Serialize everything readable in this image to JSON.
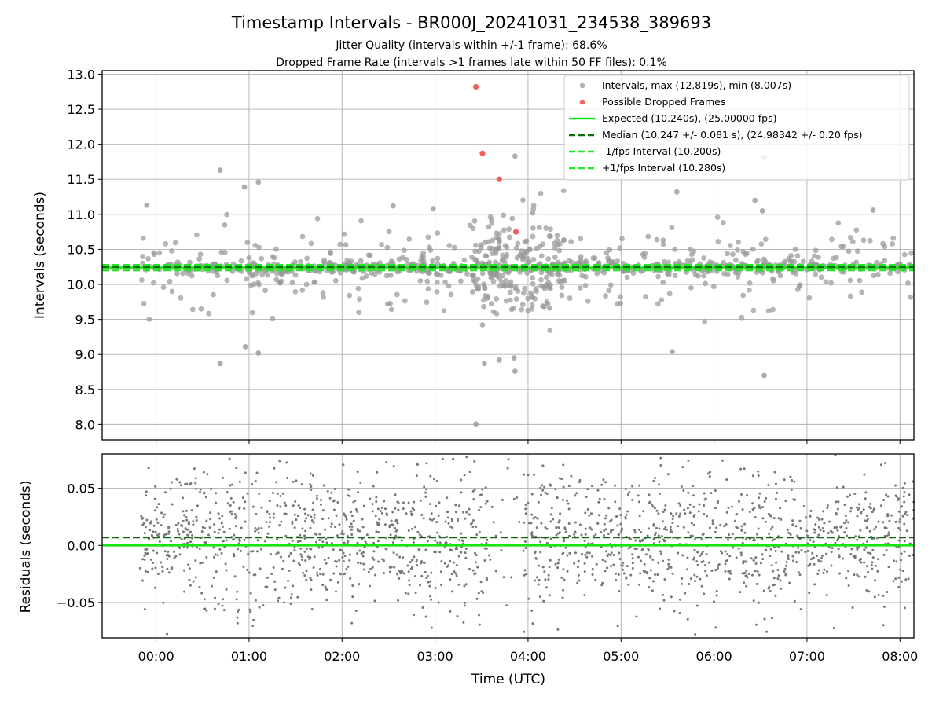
{
  "chart_data": {
    "type": "scatter",
    "title": "Timestamp Intervals - BR000J_20241031_234538_389693",
    "subtitle_lines": [
      "Jitter Quality (intervals within +/-1 frame): 68.6%",
      "Dropped Frame Rate (intervals >1 frames late within 50 FF files): 0.1%"
    ],
    "xlabel": "Time (UTC)",
    "x_ticks": [
      "00:00",
      "01:00",
      "02:00",
      "03:00",
      "04:00",
      "05:00",
      "06:00",
      "07:00",
      "08:00"
    ],
    "x_range_hours": [
      -0.58,
      8.15
    ],
    "grid": true,
    "legend_position": "upper right",
    "colors": {
      "intervals": "#999999",
      "dropped": "#ef4a4a",
      "expected": "#14e614",
      "median": "#0b6e0b",
      "fps_bounds": "#24e624",
      "residuals": "#777777"
    },
    "top_panel": {
      "ylabel": "Intervals (seconds)",
      "ylim": [
        7.78,
        13.05
      ],
      "y_ticks": [
        "8.0",
        "8.5",
        "9.0",
        "9.5",
        "10.0",
        "10.5",
        "11.0",
        "11.5",
        "12.0",
        "12.5",
        "13.0"
      ],
      "lines": {
        "expected": 10.24,
        "median": 10.247,
        "lower": 10.2,
        "upper": 10.28
      },
      "legend": [
        "Intervals, max (12.819s), min (8.007s)",
        "Possible Dropped Frames",
        "Expected (10.240s), (25.00000 fps)",
        "Median (10.247 +/- 0.081 s), (24.98342 +/- 0.20 fps)",
        "-1/fps Interval (10.200s)",
        "+1/fps Interval (10.280s)"
      ],
      "dropped_frames": [
        {
          "x": 3.44,
          "y": 12.82
        },
        {
          "x": 3.51,
          "y": 11.87
        },
        {
          "x": 3.69,
          "y": 11.5
        },
        {
          "x": 3.87,
          "y": 10.75
        }
      ],
      "notable_intervals": [
        {
          "x": 3.44,
          "y": 8.007
        },
        {
          "x": 0.69,
          "y": 11.63
        },
        {
          "x": 0.95,
          "y": 11.39
        },
        {
          "x": 1.1,
          "y": 11.46
        },
        {
          "x": 3.86,
          "y": 11.83
        },
        {
          "x": 6.54,
          "y": 11.81
        },
        {
          "x": 6.54,
          "y": 8.7
        },
        {
          "x": 0.69,
          "y": 8.87
        },
        {
          "x": 0.96,
          "y": 9.11
        },
        {
          "x": 1.1,
          "y": 9.02
        },
        {
          "x": 3.86,
          "y": 8.76
        },
        {
          "x": 3.85,
          "y": 8.95
        },
        {
          "x": 3.69,
          "y": 8.92
        },
        {
          "x": 3.53,
          "y": 8.87
        },
        {
          "x": 5.55,
          "y": 9.04
        },
        {
          "x": 5.6,
          "y": 11.32
        },
        {
          "x": 6.52,
          "y": 11.05
        },
        {
          "x": 6.44,
          "y": 11.2
        },
        {
          "x": 2.55,
          "y": 11.12
        },
        {
          "x": 2.98,
          "y": 11.08
        },
        {
          "x": -0.1,
          "y": 11.13
        },
        {
          "x": 4.05,
          "y": 11.02
        },
        {
          "x": 7.71,
          "y": 11.06
        }
      ],
      "distribution": {
        "center": 10.24,
        "core_sd": 0.05,
        "spread_sd": 0.3,
        "count_per_hour": 95,
        "active_hours": [
          -0.18,
          8.15
        ],
        "dense_hours": [
          3.4,
          4.4
        ]
      }
    },
    "bottom_panel": {
      "ylabel": "Residuals (seconds)",
      "ylim": [
        -0.081,
        0.08
      ],
      "y_ticks": [
        "−0.05",
        "0.00",
        "0.05"
      ],
      "lines": {
        "expected": 0.0,
        "median": 0.007
      },
      "distribution": {
        "center": 0.005,
        "sd": 0.032,
        "count_per_hour": 230,
        "active_hours": [
          -0.18,
          8.15
        ],
        "gap_hours": [
          3.6,
          3.95
        ]
      }
    }
  }
}
